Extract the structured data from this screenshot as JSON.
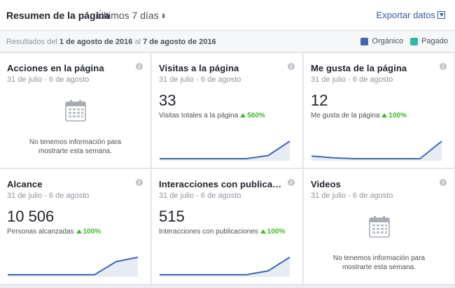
{
  "header": {
    "title": "Resumen de la página",
    "range_label": "Últimos 7 días",
    "export_label": "Exportar datos"
  },
  "subbar": {
    "results_prefix": "Resultados del",
    "date_start": "1 de agosto de 2016",
    "results_mid": "al",
    "date_end": "7 de agosto de 2016"
  },
  "legend": {
    "organic_label": "Orgánico",
    "organic_color": "#4267b2",
    "paid_label": "Pagado",
    "paid_color": "#2abba7"
  },
  "cards": [
    {
      "title": "Acciones en la página",
      "date": "31 de julio - 6 de agosto",
      "empty": true,
      "empty_line1": "No tenemos información para",
      "empty_line2": "mostrarte esta semana."
    },
    {
      "title": "Visitas a la página",
      "date": "31 de julio - 6 de agosto",
      "value": "33",
      "metric": "Visitas totales a la página",
      "change": "560%",
      "spark": [
        0,
        0,
        0,
        0,
        0,
        0.18,
        1
      ]
    },
    {
      "title": "Me gusta de la página",
      "date": "31 de julio - 6 de agosto",
      "value": "12",
      "metric": "Me gusta de la página",
      "change": "100%",
      "spark": [
        0.15,
        0.05,
        0.0,
        0.0,
        0.0,
        0.0,
        1
      ]
    },
    {
      "title": "Alcance",
      "date": "31 de julio - 6 de agosto",
      "value": "10 506",
      "metric": "Personas alcanzadas",
      "change": "100%",
      "spark": [
        0,
        0,
        0,
        0,
        0,
        0.75,
        1
      ]
    },
    {
      "title": "Interacciones con publicacio...",
      "date": "31 de julio - 6 de agosto",
      "value": "515",
      "metric": "Interacciones con publicaciones",
      "change": "100%",
      "spark": [
        0,
        0,
        0,
        0,
        0,
        0.22,
        1
      ]
    },
    {
      "title": "Videos",
      "date": "31 de julio - 6 de agosto",
      "empty": true,
      "empty_line1": "No tenemos información para",
      "empty_line2": "mostrarte esta semana."
    }
  ]
}
